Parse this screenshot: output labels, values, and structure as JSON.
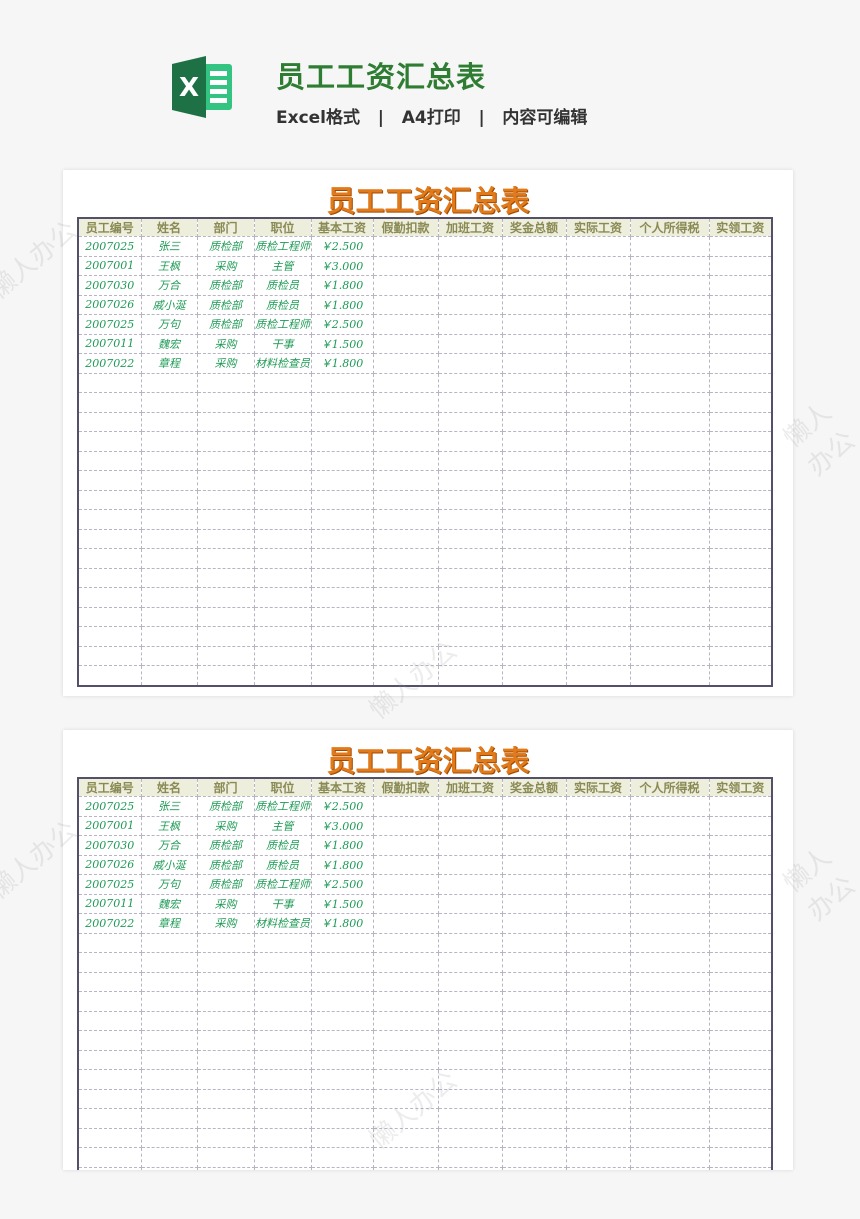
{
  "header": {
    "title": "员工工资汇总表",
    "subtitle": "Excel格式   |   A4打印   |   内容可编辑",
    "logo_letter": "X",
    "logo_color": "#21a366"
  },
  "sheet": {
    "title": "员工工资汇总表",
    "columns": [
      "员工编号",
      "姓名",
      "部门",
      "职位",
      "基本工资",
      "假勤扣款",
      "加班工资",
      "奖金总额",
      "实际工资",
      "个人所得税",
      "实领工资"
    ],
    "rows": [
      [
        "2007025",
        "张三",
        "质检部",
        "质检工程师",
        "￥2.500"
      ],
      [
        "2007001",
        "王枫",
        "采购",
        "主管",
        "￥3.000"
      ],
      [
        "2007030",
        "万合",
        "质检部",
        "质检员",
        "￥1.800"
      ],
      [
        "2007026",
        "戚小涎",
        "质检部",
        "质检员",
        "￥1.800"
      ],
      [
        "2007025",
        "万句",
        "质检部",
        "质检工程师",
        "￥2.500"
      ],
      [
        "2007011",
        "魏宏",
        "采购",
        "干事",
        "￥1.500"
      ],
      [
        "2007022",
        "章程",
        "采购",
        "材料检查员",
        "￥1.800"
      ]
    ]
  },
  "watermark": "懒人办公",
  "colors": {
    "title_green": "#2e7d32",
    "sheet_title": "#e07a1a",
    "data_text": "#1e9a55",
    "header_bg": "#eeeedd"
  }
}
